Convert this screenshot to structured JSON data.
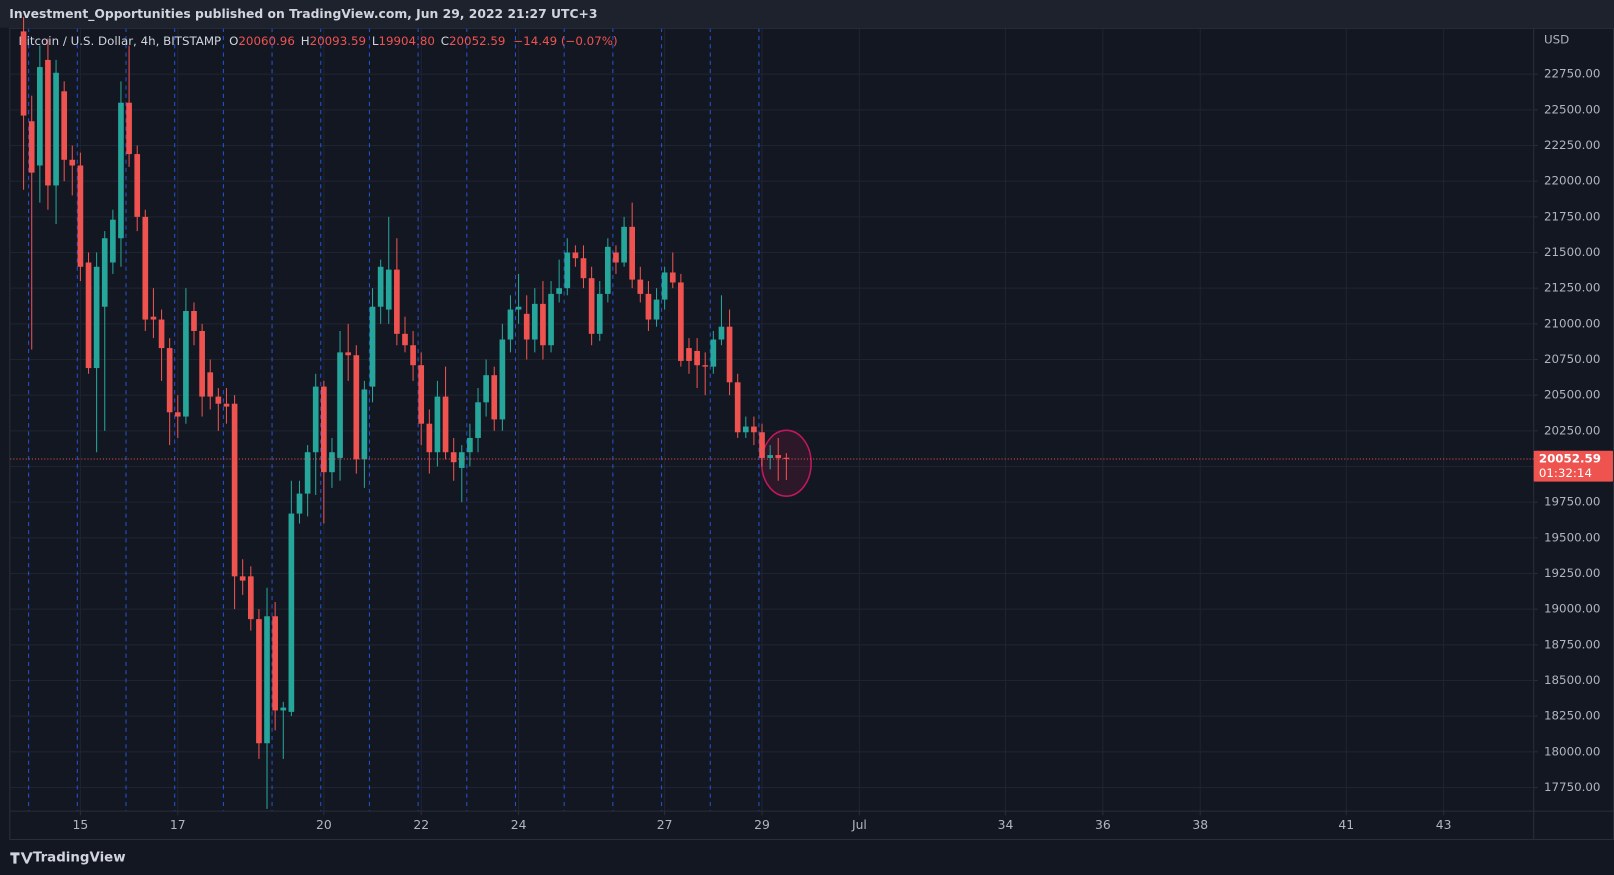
{
  "header": {
    "title": "Investment_Opportunities published on TradingView.com, Jun 29, 2022 21:27 UTC+3"
  },
  "footer": {
    "brand": "TradingView"
  },
  "chart_data": {
    "type": "candlestick",
    "symbol": "Bitcoin / U.S. Dollar, 4h, BITSTAMP",
    "legend_values": {
      "O": "20060.96",
      "H": "20093.59",
      "L": "19904.80",
      "C": "20052.59",
      "change": "−14.49 (−0.07%)"
    },
    "y_axis_label": "USD",
    "countdown": "01:32:14",
    "up_color": "#26a69a",
    "down_color": "#ef5350",
    "grid": true,
    "x": [
      13.833,
      14,
      14.167,
      14.333,
      14.5,
      14.667,
      14.833,
      15,
      15.167,
      15.333,
      15.5,
      15.667,
      15.833,
      16,
      16.167,
      16.333,
      16.5,
      16.667,
      16.833,
      17,
      17.167,
      17.333,
      17.5,
      17.667,
      17.833,
      18,
      18.167,
      18.333,
      18.5,
      18.667,
      18.833,
      19,
      19.167,
      19.333,
      19.5,
      19.667,
      19.833,
      20,
      20.167,
      20.333,
      20.5,
      20.667,
      20.833,
      21,
      21.167,
      21.333,
      21.5,
      21.667,
      21.833,
      22,
      22.167,
      22.333,
      22.5,
      22.667,
      22.833,
      23,
      23.167,
      23.333,
      23.5,
      23.667,
      23.833,
      24,
      24.167,
      24.333,
      24.5,
      24.667,
      24.833,
      25,
      25.167,
      25.333,
      25.5,
      25.667,
      25.833,
      26,
      26.167,
      26.333,
      26.5,
      26.667,
      26.833,
      27,
      27.167,
      27.333,
      27.5,
      27.667,
      27.833,
      28,
      28.167,
      28.333,
      28.5,
      28.667,
      28.833,
      29,
      29.167,
      29.333,
      29.5
    ],
    "open": [
      23050,
      22420,
      22110,
      22850,
      21970,
      22630,
      22150,
      22110,
      21430,
      20690,
      21120,
      21430,
      21600,
      22550,
      22190,
      21750,
      21050,
      21030,
      20830,
      20380,
      20350,
      21090,
      20950,
      20660,
      20490,
      20440,
      20440,
      19230,
      19230,
      18930,
      18060,
      18950,
      18290,
      18280,
      19670,
      19810,
      20100,
      20560,
      19960,
      20060,
      20800,
      20780,
      20050,
      20560,
      21120,
      21100,
      21380,
      20930,
      20850,
      20710,
      20300,
      20100,
      20490,
      20100,
      19990,
      20100,
      20200,
      20450,
      20640,
      20330,
      20890,
      21100,
      21070,
      20890,
      21140,
      20850,
      21210,
      21250,
      21500,
      21460,
      21320,
      20930,
      21210,
      21500,
      21430,
      21680,
      21310,
      21210,
      21030,
      21170,
      21360,
      21290,
      20830,
      20810,
      20710,
      20700,
      20890,
      20980,
      20590,
      20240,
      20280,
      20240,
      20060,
      20080,
      20060.96
    ],
    "high": [
      23150,
      22600,
      22950,
      23000,
      22850,
      22700,
      22250,
      22200,
      21500,
      21500,
      21650,
      21800,
      22700,
      22950,
      22250,
      21800,
      21250,
      21100,
      20900,
      20500,
      21250,
      21150,
      21000,
      20750,
      20550,
      20550,
      20500,
      19350,
      19300,
      19000,
      19150,
      19050,
      18350,
      19900,
      19900,
      20150,
      20650,
      20600,
      20200,
      20950,
      21000,
      20850,
      20600,
      21250,
      21450,
      21750,
      21600,
      21050,
      20950,
      20800,
      20400,
      20600,
      20700,
      20200,
      20150,
      20300,
      20550,
      20750,
      20700,
      21000,
      21200,
      21350,
      21200,
      21250,
      21300,
      21300,
      21450,
      21600,
      21550,
      21550,
      21400,
      21300,
      21600,
      21550,
      21750,
      21850,
      21400,
      21300,
      21250,
      21400,
      21500,
      21350,
      20900,
      20900,
      20800,
      20950,
      21200,
      21100,
      20650,
      20350,
      20350,
      20300,
      20150,
      20200,
      20093.59
    ],
    "low": [
      21940,
      20820,
      21850,
      21800,
      21700,
      22000,
      21900,
      21300,
      20650,
      20100,
      20250,
      21350,
      21400,
      22100,
      21650,
      20950,
      20900,
      20600,
      20150,
      20200,
      20300,
      20850,
      20350,
      20400,
      20250,
      20300,
      19000,
      19100,
      18850,
      17950,
      17600,
      18150,
      17950,
      18250,
      19600,
      19650,
      19800,
      19600,
      19850,
      19900,
      20600,
      19950,
      19850,
      20450,
      21000,
      21000,
      20850,
      20800,
      20600,
      20150,
      19950,
      20000,
      20050,
      19900,
      19750,
      20000,
      20100,
      20350,
      20250,
      20250,
      20800,
      21000,
      20750,
      20800,
      20750,
      20800,
      21150,
      21200,
      21400,
      21250,
      20850,
      20880,
      21150,
      21350,
      21400,
      21250,
      21150,
      20950,
      20980,
      21100,
      21250,
      20700,
      20650,
      20550,
      20500,
      20650,
      20850,
      20500,
      20200,
      20200,
      20150,
      20000,
      19980,
      19900,
      19904.8
    ],
    "close": [
      22460,
      22060,
      22800,
      21970,
      22760,
      22150,
      22110,
      21400,
      20690,
      21400,
      21600,
      21730,
      22550,
      22190,
      21750,
      21030,
      21030,
      20830,
      20380,
      20350,
      21090,
      20950,
      20490,
      20490,
      20440,
      20420,
      19230,
      19200,
      18930,
      18060,
      18950,
      18290,
      18310,
      19670,
      19810,
      20100,
      20560,
      19960,
      20100,
      20800,
      20780,
      20050,
      20540,
      21120,
      21400,
      21380,
      20930,
      20850,
      20710,
      20300,
      20100,
      20490,
      20100,
      20030,
      20100,
      20200,
      20450,
      20640,
      20330,
      20890,
      21100,
      21120,
      20890,
      21140,
      20850,
      21210,
      21250,
      21500,
      21460,
      21320,
      20930,
      21210,
      21540,
      21430,
      21680,
      21310,
      21210,
      21030,
      21170,
      21360,
      21290,
      20740,
      20740,
      20710,
      20700,
      20890,
      20980,
      20590,
      20240,
      20280,
      20240,
      20060,
      20080,
      20060,
      20052.59
    ],
    "xlim": [
      13.56,
      44.85
    ],
    "xticks": [
      15,
      17,
      20,
      22,
      24,
      27,
      29,
      {
        "value": 31,
        "label": "Jul"
      },
      34,
      36,
      38,
      41,
      43
    ],
    "ylim": [
      17584,
      23075
    ],
    "yticks": [
      {
        "value": 17750,
        "label": "17750.00"
      },
      {
        "value": 18000,
        "label": "18000.00"
      },
      {
        "value": 18250,
        "label": "18250.00"
      },
      {
        "value": 18500,
        "label": "18500.00"
      },
      {
        "value": 18750,
        "label": "18750.00"
      },
      {
        "value": 19000,
        "label": "19000.00"
      },
      {
        "value": 19250,
        "label": "19250.00"
      },
      {
        "value": 19500,
        "label": "19500.00"
      },
      {
        "value": 19750,
        "label": "19750.00"
      },
      {
        "value": 20000,
        "label": "20000.00"
      },
      {
        "value": 20250,
        "label": "20250.00"
      },
      {
        "value": 20500,
        "label": "20500.00"
      },
      {
        "value": 20750,
        "label": "20750.00"
      },
      {
        "value": 21000,
        "label": "21000.00"
      },
      {
        "value": 21250,
        "label": "21250.00"
      },
      {
        "value": 21500,
        "label": "21500.00"
      },
      {
        "value": 21750,
        "label": "21750.00"
      },
      {
        "value": 22000,
        "label": "22000.00"
      },
      {
        "value": 22250,
        "label": "22250.00"
      },
      {
        "value": 22500,
        "label": "22500.00"
      },
      {
        "value": 22750,
        "label": "22750.00"
      }
    ]
  }
}
